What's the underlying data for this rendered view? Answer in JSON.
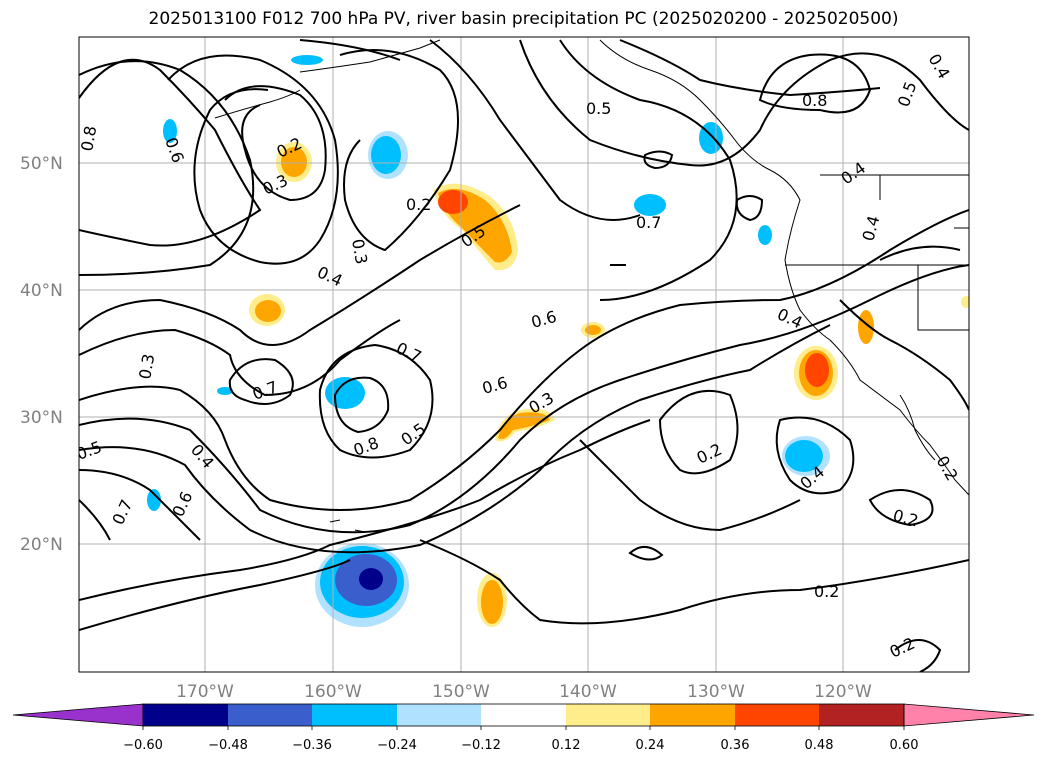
{
  "title": "2025013100 F012 700 hPa PV, river basin precipitation PC (2025020200 - 2025020500)",
  "map": {
    "lat_labels": [
      "50°N",
      "40°N",
      "30°N",
      "20°N"
    ],
    "lon_labels": [
      "170°W",
      "160°W",
      "150°W",
      "140°W",
      "130°W",
      "120°W"
    ],
    "contour_labels": [
      "0.8",
      "0.6",
      "0.2",
      "0.3",
      "0.2",
      "0.3",
      "0.4",
      "0.5",
      "0.5",
      "0.8",
      "0.5",
      "0.4",
      "0.7",
      "0.4",
      "0.4",
      "0.6",
      "0.3",
      "0.7",
      "0.7",
      "0.8",
      "0.5",
      "0.6",
      "0.3",
      "0.2",
      "0.4",
      "0.5",
      "0.4",
      "0.6",
      "0.7",
      "0.2",
      "0.2",
      "0.2",
      "0.2",
      "0.4"
    ],
    "coastline_color": "#000000",
    "grid_color": "#b0b0b0"
  },
  "colorbar": {
    "colors": [
      "#9932cc",
      "#00008b",
      "#3a5fcd",
      "#00bfff",
      "#b0e2ff",
      "#ffffff",
      "#ffec8b",
      "#ffa500",
      "#ff4500",
      "#b22222",
      "#ff82ab"
    ],
    "ticks": [
      "−0.60",
      "−0.48",
      "−0.36",
      "−0.24",
      "−0.12",
      "0.12",
      "0.24",
      "0.36",
      "0.48",
      "0.60"
    ]
  }
}
